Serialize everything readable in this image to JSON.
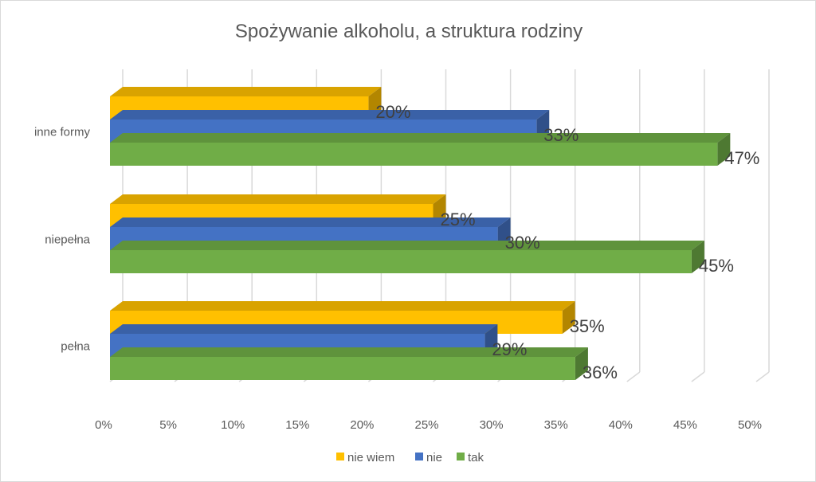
{
  "chart_data": {
    "type": "bar",
    "orientation": "horizontal",
    "title": "Spożywanie alkoholu, a struktura rodziny",
    "categories": [
      "inne formy",
      "niepełna",
      "pełna"
    ],
    "series": [
      {
        "name": "nie wiem",
        "color": "#FFC000",
        "values": [
          20,
          25,
          35
        ],
        "labels": [
          "20%",
          "25%",
          "35%"
        ]
      },
      {
        "name": "nie",
        "color": "#4472C4",
        "values": [
          33,
          30,
          29
        ],
        "labels": [
          "33%",
          "30%",
          "29%"
        ]
      },
      {
        "name": "tak",
        "color": "#70AD47",
        "values": [
          47,
          45,
          36
        ],
        "labels": [
          "47%",
          "45%",
          "36%"
        ]
      }
    ],
    "xlim": [
      0,
      50
    ],
    "x_ticks": [
      "0%",
      "5%",
      "10%",
      "15%",
      "20%",
      "25%",
      "30%",
      "35%",
      "40%",
      "45%",
      "50%"
    ],
    "grid": true,
    "legend_position": "bottom",
    "style": "3d"
  }
}
